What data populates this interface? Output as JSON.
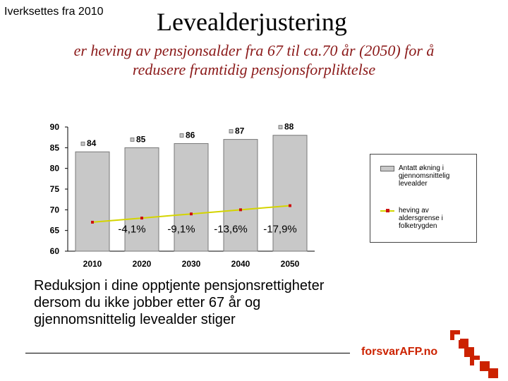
{
  "header": {
    "note": "Iverksettes fra 2010",
    "title": "Levealderjustering",
    "subtitle": "er heving av pensjonsalder fra 67 til ca.70 år (2050)  for å redusere framtidig pensjonsforpliktelse"
  },
  "chart_data": {
    "type": "bar",
    "categories": [
      "2010",
      "2020",
      "2030",
      "2040",
      "2050"
    ],
    "series": [
      {
        "name": "Antatt økning i gjennomsnittelig levealder",
        "kind": "bar",
        "values": [
          84,
          85,
          86,
          87,
          88
        ],
        "labels": [
          "84",
          "85",
          "86",
          "87",
          "88"
        ]
      },
      {
        "name": "heving av aldersgrense i folketrygden",
        "kind": "line",
        "values": [
          67,
          68,
          69,
          70,
          71
        ]
      }
    ],
    "reductions": [
      "",
      "-4,1%",
      "-9,1%",
      "-13,6%",
      "-17,9%"
    ],
    "ylim": [
      60,
      90
    ],
    "yticks": [
      60,
      65,
      70,
      75,
      80,
      85,
      90
    ],
    "colors": {
      "bar": "#c8c8c8",
      "bar_stroke": "#777777",
      "line": "#d4d400",
      "marker": "#cc1111"
    },
    "legend": {
      "position": "right",
      "bar_label": "Antatt økning i gjennomsnittelig levealder",
      "line_label": "heving av aldersgrense i folketrygden"
    }
  },
  "caption": "Reduksjon i dine opptjente pensjonsrettigheter dersom du ikke jobber etter 67 år og gjennomsnittelig levealder stiger",
  "logo": {
    "text": "forsvarAFP.no",
    "color": "#cc2200"
  }
}
